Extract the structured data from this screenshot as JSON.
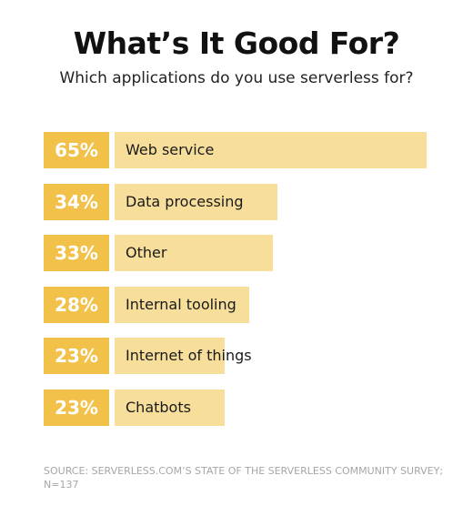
{
  "chart_data": {
    "type": "bar",
    "orientation": "horizontal",
    "title": "What’s It Good For?",
    "subtitle": "Which applications do you use serverless for?",
    "categories": [
      "Web service",
      "Data processing",
      "Other",
      "Internal tooling",
      "Internet of things",
      "Chatbots"
    ],
    "values": [
      65,
      34,
      33,
      28,
      23,
      23
    ],
    "value_labels": [
      "65%",
      "34%",
      "33%",
      "28%",
      "23%",
      "23%"
    ],
    "unit": "%",
    "grid": false,
    "legend": "none",
    "colors": {
      "value_box": "#f2c14a",
      "bar": "#f7de9a",
      "value_text": "#ffffff"
    }
  },
  "source": "SOURCE: SERVERLESS.COM’S STATE OF THE SERVERLESS COMMUNITY SURVEY; N=137"
}
